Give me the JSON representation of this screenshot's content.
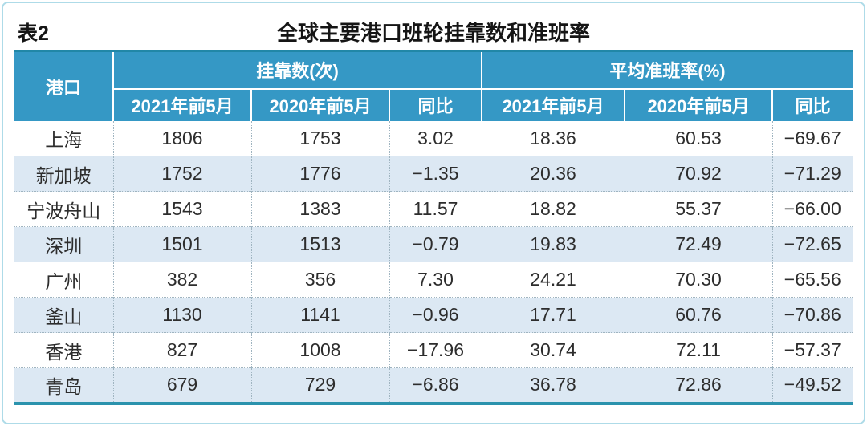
{
  "caption": {
    "label": "表2",
    "title": "全球主要港口班轮挂靠数和准班率"
  },
  "table": {
    "port_header": "港口",
    "group_calls": "挂靠数(次)",
    "group_reliability": "平均准班率(%)",
    "subheaders": [
      "2021年前5月",
      "2020年前5月",
      "同比"
    ],
    "rows": [
      [
        "上海",
        "1806",
        "1753",
        "3.02",
        "18.36",
        "60.53",
        "−69.67"
      ],
      [
        "新加坡",
        "1752",
        "1776",
        "−1.35",
        "20.36",
        "70.92",
        "−71.29"
      ],
      [
        "宁波舟山",
        "1543",
        "1383",
        "11.57",
        "18.82",
        "55.37",
        "−66.00"
      ],
      [
        "深圳",
        "1501",
        "1513",
        "−0.79",
        "19.83",
        "72.49",
        "−72.65"
      ],
      [
        "广州",
        "382",
        "356",
        "7.30",
        "24.21",
        "70.30",
        "−65.56"
      ],
      [
        "釜山",
        "1130",
        "1141",
        "−0.96",
        "17.71",
        "60.76",
        "−70.86"
      ],
      [
        "香港",
        "827",
        "1008",
        "−17.96",
        "30.74",
        "72.11",
        "−57.37"
      ],
      [
        "青岛",
        "679",
        "729",
        "−6.86",
        "36.78",
        "72.86",
        "−49.52"
      ]
    ]
  },
  "colors": {
    "header_bg": "#3598c5",
    "top_border": "#2187a7",
    "bottom_border": "#2b93ad",
    "alt_row": "#dce8f3",
    "frame_border": "#aedbe8",
    "grid_dots": "#9fb4c0",
    "text_dark": "#2d2d2d"
  }
}
